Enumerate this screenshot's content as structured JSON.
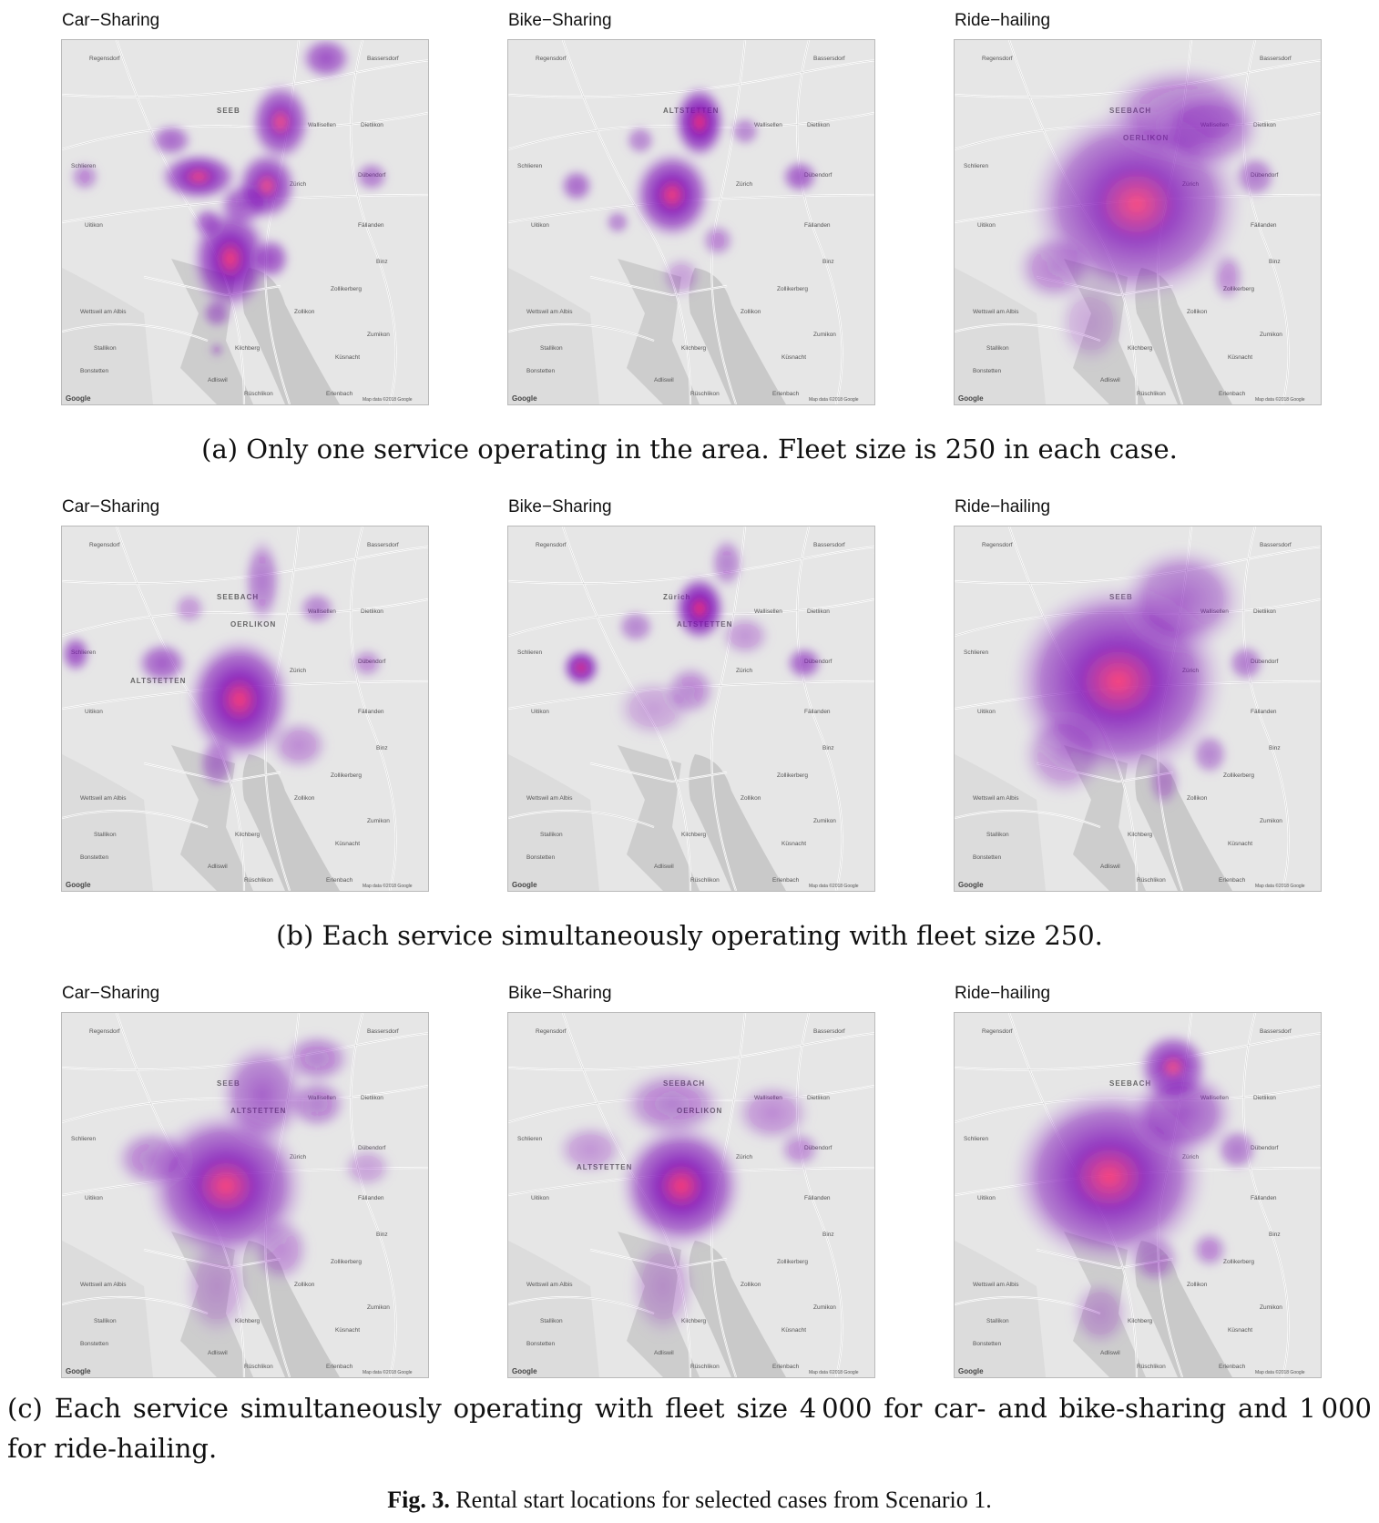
{
  "figure": {
    "fig_label": "Fig. 3.",
    "fig_text": "Rental start locations for selected cases from Scenario 1.",
    "colors": {
      "heat_low": "#c9a2e6",
      "heat_mid": "#7f10b8",
      "heat_high": "#ff2a6a",
      "water": "#c9c9c9",
      "map_bg": "#e6e6e6"
    },
    "rows": [
      {
        "caption": "(a) Only one service operating in the area. Fleet size is 250 in each case.",
        "panels": [
          {
            "title": "Car−Sharing",
            "map_labels": {
              "district_a": "SEEB"
            }
          },
          {
            "title": "Bike−Sharing",
            "map_labels": {
              "district_a": "ALTSTETTEN"
            }
          },
          {
            "title": "Ride−hailing",
            "map_labels": {
              "district_a": "SEEBACH",
              "district_b": "OERLIKON"
            }
          }
        ]
      },
      {
        "caption": "(b) Each service simultaneously operating with fleet size 250.",
        "panels": [
          {
            "title": "Car−Sharing",
            "map_labels": {
              "district_a": "SEEBACH",
              "district_b": "OERLIKON",
              "district_c": "ALTSTETTEN"
            }
          },
          {
            "title": "Bike−Sharing",
            "map_labels": {
              "district_a": "Zürich",
              "district_b": "ALTSTETTEN"
            }
          },
          {
            "title": "Ride−hailing",
            "map_labels": {
              "district_a": "SEEB"
            }
          }
        ]
      },
      {
        "caption": "(c) Each service simultaneously operating with fleet size 4 000 for car- and bike-sharing and 1 000 for ride-hailing.",
        "panels": [
          {
            "title": "Car−Sharing",
            "map_labels": {
              "district_a": "SEEB",
              "district_b": "ALTSTETTEN"
            }
          },
          {
            "title": "Bike−Sharing",
            "map_labels": {
              "district_a": "SEEBACH",
              "district_b": "OERLIKON",
              "district_c": "ALTSTETTEN"
            }
          },
          {
            "title": "Ride−hailing",
            "map_labels": {
              "district_a": "SEEBACH"
            }
          }
        ]
      }
    ],
    "map_common": {
      "attribution_logo": "Google",
      "attribution_text": "Map data ©2018 Google",
      "places": {
        "regensdorf": "Regensdorf",
        "bassersdorf": "Bassersdorf",
        "dietlikon": "Dietlikon",
        "wallisellen": "Wallisellen",
        "duebendorf": "Dübendorf",
        "schlieren": "Schlieren",
        "zuerich": "Zürich",
        "uitikon": "Uitikon",
        "faellanden": "Fällanden",
        "zollikerberg": "Zollikerberg",
        "zollikon": "Zollikon",
        "zumikon": "Zumikon",
        "kilchberg": "Kilchberg",
        "adliswil": "Adliswil",
        "rueschlikon": "Rüschlikon",
        "erlenbach": "Erlenbach",
        "binz": "Binz",
        "kuesnacht": "Küsnacht",
        "wettswil": "Wettswil am Albis",
        "bonstetten": "Bonstetten",
        "stallikon": "Stallikon"
      }
    }
  }
}
